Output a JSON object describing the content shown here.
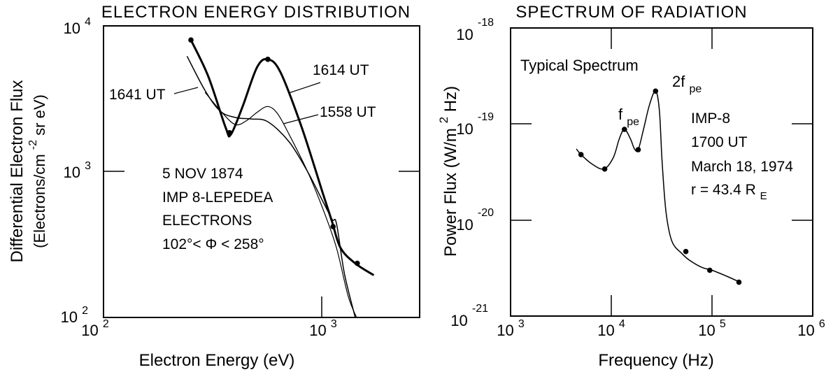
{
  "chart_data": [
    {
      "type": "line",
      "title": "ELECTRON ENERGY DISTRIBUTION",
      "xlabel": "Electron Energy (eV)",
      "ylabel_line1": "Differential Electron Flux",
      "ylabel_line2_pre": "(Electrons/cm",
      "ylabel_line2_sup": "-2",
      "ylabel_line2_post": " sr eV)",
      "xscale": "log",
      "yscale": "log",
      "xlim": [
        100,
        3000
      ],
      "ylim": [
        100,
        10000
      ],
      "x_ticks": [
        {
          "base": "10",
          "exp": "2"
        },
        {
          "base": "10",
          "exp": "3"
        }
      ],
      "y_ticks": [
        {
          "base": "10",
          "exp": "2"
        },
        {
          "base": "10",
          "exp": "3"
        },
        {
          "base": "10",
          "exp": "4"
        }
      ],
      "annotation": [
        "5 NOV 1874",
        "IMP 8-LEPEDEA",
        "ELECTRONS",
        "102°< Φ < 258°"
      ],
      "series": [
        {
          "name": "1614 UT",
          "x": [
            250,
            300,
            360,
            380,
            430,
            500,
            560,
            640,
            800,
            1000,
            1100,
            1200,
            1400,
            1700
          ],
          "y": [
            8000,
            4500,
            2000,
            1800,
            2800,
            5200,
            5900,
            4800,
            2000,
            700,
            450,
            300,
            235,
            195
          ],
          "markers_x": [
            250,
            375,
            560,
            1110,
            1430
          ],
          "markers_y": [
            8000,
            1850,
            5900,
            420,
            235
          ]
        },
        {
          "name": "1558 UT",
          "x": [
            290,
            350,
            400,
            450,
            500,
            560,
            620,
            700,
            850,
            1000,
            1150,
            1300,
            1420
          ],
          "y": [
            3500,
            2500,
            2100,
            2250,
            2550,
            2800,
            2500,
            1800,
            1000,
            550,
            300,
            140,
            100
          ]
        },
        {
          "name": "1641 UT",
          "x": [
            240,
            290,
            340,
            400,
            470,
            560,
            700,
            850,
            1000,
            1100,
            1150,
            1250,
            1400
          ],
          "y": [
            6200,
            3600,
            2600,
            2350,
            2300,
            2200,
            1600,
            1000,
            620,
            470,
            440,
            200,
            100
          ]
        }
      ]
    },
    {
      "type": "line",
      "title": "SPECTRUM OF RADIATION",
      "xlabel": "Frequency (Hz)",
      "ylabel_pre": "Power Flux (W/m",
      "ylabel_sup": "2",
      "ylabel_post": "Hz)",
      "xscale": "log",
      "yscale": "log",
      "xlim": [
        1000,
        1000000
      ],
      "ylim": [
        1e-21,
        1e-18
      ],
      "x_ticks": [
        {
          "base": "10",
          "exp": "3"
        },
        {
          "base": "10",
          "exp": "4"
        },
        {
          "base": "10",
          "exp": "5"
        },
        {
          "base": "10",
          "exp": "6"
        }
      ],
      "y_ticks": [
        {
          "base": "10",
          "exp": "-21"
        },
        {
          "base": "10",
          "exp": "-20"
        },
        {
          "base": "10",
          "exp": "-19"
        },
        {
          "base": "10",
          "exp": "-18"
        }
      ],
      "label_typical": "Typical Spectrum",
      "label_fpe_base": "f",
      "label_fpe_sub": "pe",
      "label_2fpe_base": "2f",
      "label_2fpe_sub": "pe",
      "info_lines": [
        "IMP-8",
        "1700 UT",
        "March 18, 1974"
      ],
      "info_r_pre": "r = 43.4 R",
      "info_r_sub": "E",
      "series": [
        {
          "name": "",
          "x": [
            4500,
            5000,
            6500,
            8500,
            10500,
            12000,
            13500,
            15500,
            17000,
            18500,
            21000,
            24000,
            27500,
            30000,
            32000,
            35000,
            40000,
            50000,
            60000,
            80000,
            100000,
            140000,
            190000
          ],
          "y": [
            5.5e-20,
            4.8e-20,
            3.8e-20,
            3.4e-20,
            4.5e-20,
            7e-20,
            8.8e-20,
            7e-20,
            5.5e-20,
            5.4e-20,
            9e-20,
            1.6e-19,
            2.2e-19,
            1.4e-19,
            4e-20,
            1.2e-20,
            6e-21,
            4.5e-21,
            3.8e-21,
            3.2e-21,
            3e-21,
            2.6e-21,
            2.25e-21
          ],
          "markers_x": [
            5000,
            8600,
            13500,
            18500,
            27500,
            55000,
            95000,
            185000
          ],
          "markers_y": [
            4.8e-20,
            3.4e-20,
            8.8e-20,
            5.4e-20,
            2.2e-19,
            4.7e-21,
            3e-21,
            2.25e-21
          ]
        }
      ]
    }
  ]
}
